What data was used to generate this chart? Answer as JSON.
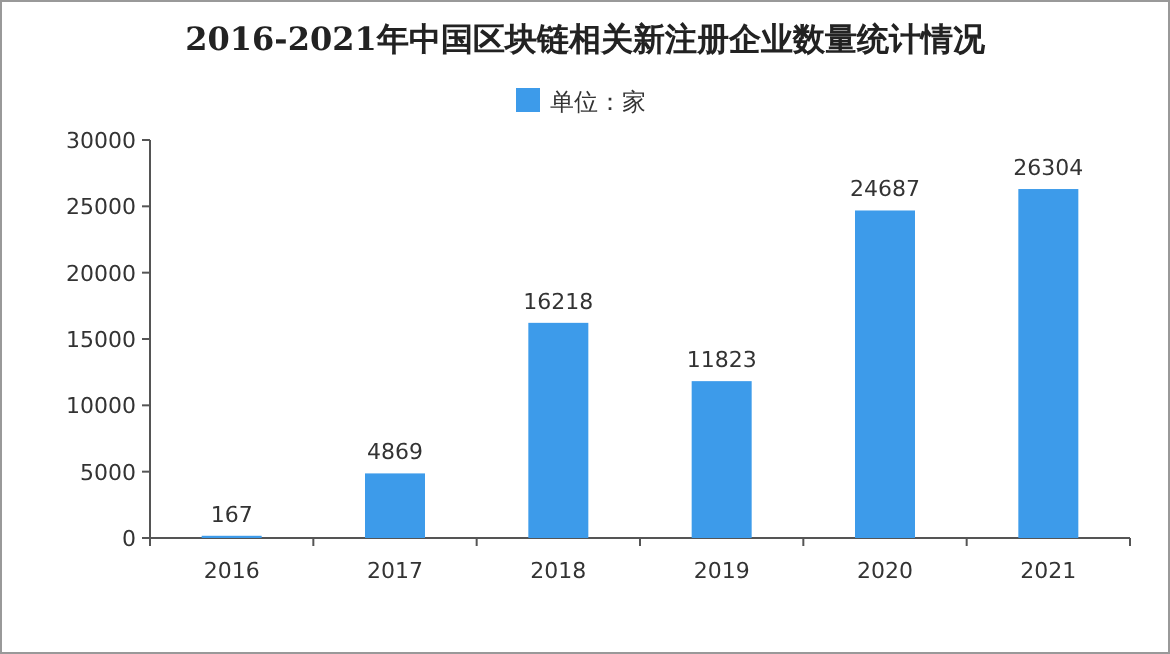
{
  "chart_data": {
    "type": "bar",
    "title": "2016-2021年中国区块链相关新注册企业数量统计情况",
    "categories": [
      "2016",
      "2017",
      "2018",
      "2019",
      "2020",
      "2021"
    ],
    "series": [
      {
        "name": "单位：家",
        "color": "#3d9bea",
        "values": [
          167,
          4869,
          16218,
          11823,
          24687,
          26304
        ]
      }
    ],
    "ylim": [
      0,
      30000
    ],
    "yticks": [
      0,
      5000,
      10000,
      15000,
      20000,
      25000,
      30000
    ],
    "data_labels": true,
    "legend": "top",
    "grid": false
  }
}
